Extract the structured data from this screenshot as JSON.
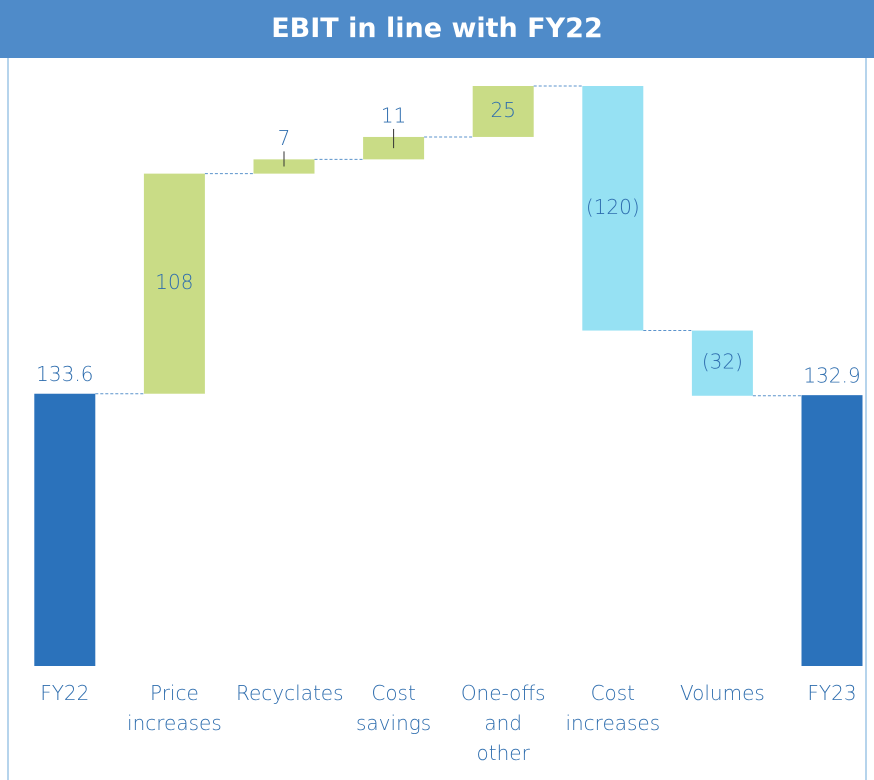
{
  "chart_data": {
    "type": "waterfall",
    "title": "EBIT in line with FY22",
    "categories": [
      "FY22",
      "Price increases",
      "Recyclates",
      "Cost savings",
      "One-offs and other",
      "Cost increases",
      "Volumes",
      "FY23"
    ],
    "values": [
      133.6,
      108,
      7,
      11,
      25,
      -120,
      -32,
      132.9
    ],
    "value_labels": [
      "133.6",
      "108",
      "7",
      "11",
      "25",
      "(120)",
      "(32)",
      "132.9"
    ],
    "total_color": "#2b72bb",
    "increase_color": "#c9dc86",
    "decrease_color": "#96e1f3"
  }
}
